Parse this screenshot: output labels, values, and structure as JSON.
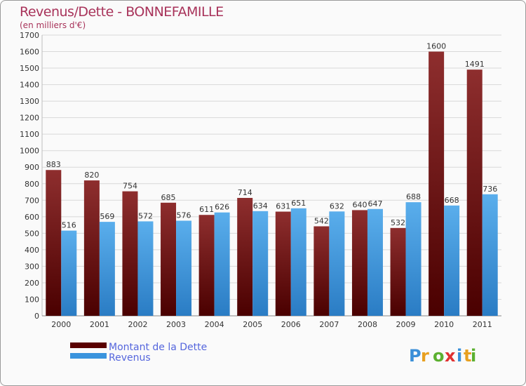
{
  "header": {
    "title": "Revenus/Dette - BONNEFAMILLE",
    "subtitle": "(en milliers d'€)"
  },
  "logo": {
    "text": "Proxiti"
  },
  "colors": {
    "debt": "#6e1212",
    "revenue": "#3a94dd",
    "title": "#a8335a",
    "legend_text": "#5566dd"
  },
  "chart_data": {
    "type": "bar",
    "title": "Revenus/Dette - BONNEFAMILLE",
    "subtitle": "(en milliers d'€)",
    "xlabel": "",
    "ylabel": "",
    "ylim": [
      0,
      1700
    ],
    "yticks": [
      0,
      100,
      200,
      300,
      400,
      500,
      600,
      700,
      800,
      900,
      1000,
      1100,
      1200,
      1300,
      1400,
      1500,
      1600,
      1700
    ],
    "grid": true,
    "legend_position": "bottom-left",
    "categories": [
      "2000",
      "2001",
      "2002",
      "2003",
      "2004",
      "2005",
      "2006",
      "2007",
      "2008",
      "2009",
      "2010",
      "2011"
    ],
    "series": [
      {
        "name": "Montant de la Dette",
        "values": [
          883,
          820,
          754,
          685,
          611,
          714,
          631,
          542,
          640,
          532,
          1600,
          1491
        ]
      },
      {
        "name": "Revenus",
        "values": [
          516,
          569,
          572,
          576,
          626,
          634,
          651,
          632,
          647,
          688,
          668,
          736
        ]
      }
    ]
  }
}
